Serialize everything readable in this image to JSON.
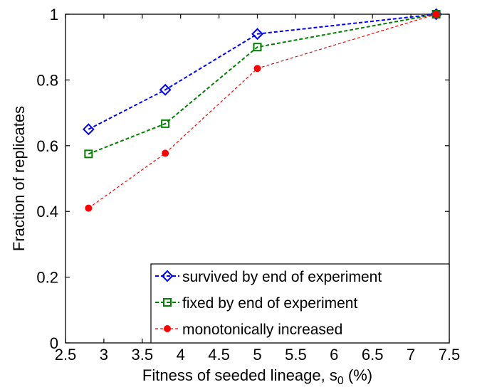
{
  "chart_data": {
    "type": "line",
    "xlabel": "Fitness of seeded lineage, s",
    "xlabel_subscript": "0",
    "xlabel_suffix": " (%)",
    "ylabel": "Fraction of replicates",
    "xlim": [
      2.5,
      7.5
    ],
    "ylim": [
      0,
      1
    ],
    "xticks": [
      "2.5",
      "3",
      "3.5",
      "4",
      "4.5",
      "5",
      "5.5",
      "6",
      "6.5",
      "7",
      "7.5"
    ],
    "yticks": [
      "0",
      "0.2",
      "0.4",
      "0.6",
      "0.8",
      "1"
    ],
    "grid": false,
    "legend_position": "bottom-right",
    "x": [
      2.8,
      3.8,
      5.0,
      7.33
    ],
    "series": [
      {
        "name": "survived by end of experiment",
        "values": [
          0.65,
          0.77,
          0.94,
          1.0
        ],
        "color": "#0000ff",
        "marker": "diamond"
      },
      {
        "name": "fixed by end of experiment",
        "values": [
          0.575,
          0.667,
          0.9,
          1.0
        ],
        "color": "#008000",
        "marker": "square"
      },
      {
        "name": "monotonically increased",
        "values": [
          0.41,
          0.577,
          0.835,
          1.0
        ],
        "color": "#ff0000",
        "marker": "circle"
      }
    ]
  }
}
